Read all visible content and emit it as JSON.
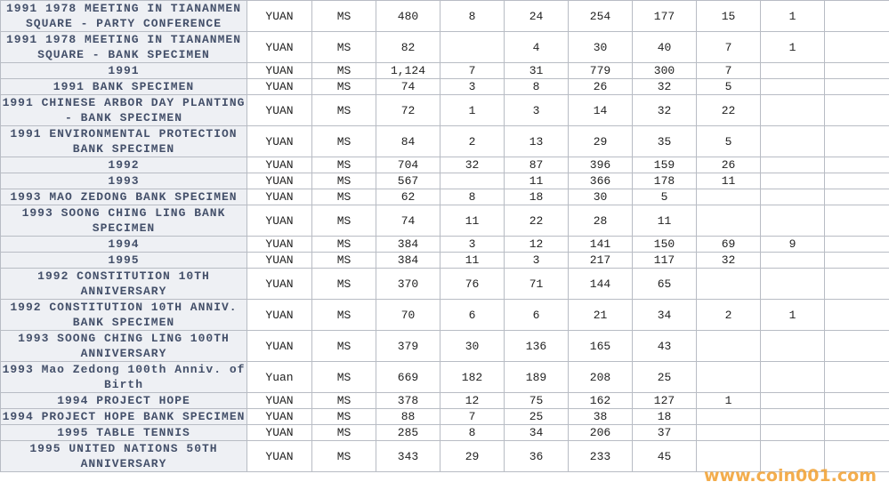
{
  "table": {
    "rows": [
      [
        "1991 1978 MEETING IN TIANANMEN SQUARE - PARTY CONFERENCE",
        "YUAN",
        "MS",
        480,
        8,
        24,
        254,
        177,
        15,
        1,
        null
      ],
      [
        "1991 1978 MEETING IN TIANANMEN SQUARE - BANK SPECIMEN",
        "YUAN",
        "MS",
        82,
        null,
        4,
        30,
        40,
        7,
        1,
        null
      ],
      [
        "1991",
        "YUAN",
        "MS",
        "1,124",
        7,
        31,
        779,
        300,
        7,
        null,
        null
      ],
      [
        "1991 BANK SPECIMEN",
        "YUAN",
        "MS",
        74,
        3,
        8,
        26,
        32,
        5,
        null,
        null
      ],
      [
        "1991 CHINESE ARBOR DAY PLANTING - BANK SPECIMEN",
        "YUAN",
        "MS",
        72,
        1,
        3,
        14,
        32,
        22,
        null,
        null
      ],
      [
        "1991 ENVIRONMENTAL PROTECTION BANK SPECIMEN",
        "YUAN",
        "MS",
        84,
        2,
        13,
        29,
        35,
        5,
        null,
        null
      ],
      [
        "1992",
        "YUAN",
        "MS",
        704,
        32,
        87,
        396,
        159,
        26,
        null,
        null
      ],
      [
        "1993",
        "YUAN",
        "MS",
        567,
        null,
        11,
        366,
        178,
        11,
        null,
        null
      ],
      [
        "1993 MAO ZEDONG BANK SPECIMEN",
        "YUAN",
        "MS",
        62,
        8,
        18,
        30,
        5,
        null,
        null,
        null
      ],
      [
        "1993 SOONG CHING LING BANK SPECIMEN",
        "YUAN",
        "MS",
        74,
        11,
        22,
        28,
        11,
        null,
        null,
        null
      ],
      [
        "1994",
        "YUAN",
        "MS",
        384,
        3,
        12,
        141,
        150,
        69,
        9,
        null
      ],
      [
        "1995",
        "YUAN",
        "MS",
        384,
        11,
        3,
        217,
        117,
        32,
        null,
        null
      ],
      [
        "1992 CONSTITUTION 10TH ANNIVERSARY",
        "YUAN",
        "MS",
        370,
        76,
        71,
        144,
        65,
        null,
        null,
        null
      ],
      [
        "1992 CONSTITUTION 10TH ANNIV. BANK SPECIMEN",
        "YUAN",
        "MS",
        70,
        6,
        6,
        21,
        34,
        2,
        1,
        null
      ],
      [
        "1993 SOONG CHING LING 100TH ANNIVERSARY",
        "YUAN",
        "MS",
        379,
        30,
        136,
        165,
        43,
        null,
        null,
        null
      ],
      [
        "1993 Mao Zedong 100th Anniv. of Birth",
        "Yuan",
        "MS",
        669,
        182,
        189,
        208,
        25,
        null,
        null,
        null
      ],
      [
        "1994 PROJECT HOPE",
        "YUAN",
        "MS",
        378,
        12,
        75,
        162,
        127,
        1,
        null,
        null
      ],
      [
        "1994 PROJECT HOPE BANK SPECIMEN",
        "YUAN",
        "MS",
        88,
        7,
        25,
        38,
        18,
        null,
        null,
        null
      ],
      [
        "1995 TABLE TENNIS",
        "YUAN",
        "MS",
        285,
        8,
        34,
        206,
        37,
        null,
        null,
        null
      ],
      [
        "1995 UNITED NATIONS 50TH ANNIVERSARY",
        "YUAN",
        "MS",
        343,
        29,
        36,
        233,
        45,
        null,
        null,
        null
      ]
    ]
  },
  "watermark": "www.coin001.com"
}
